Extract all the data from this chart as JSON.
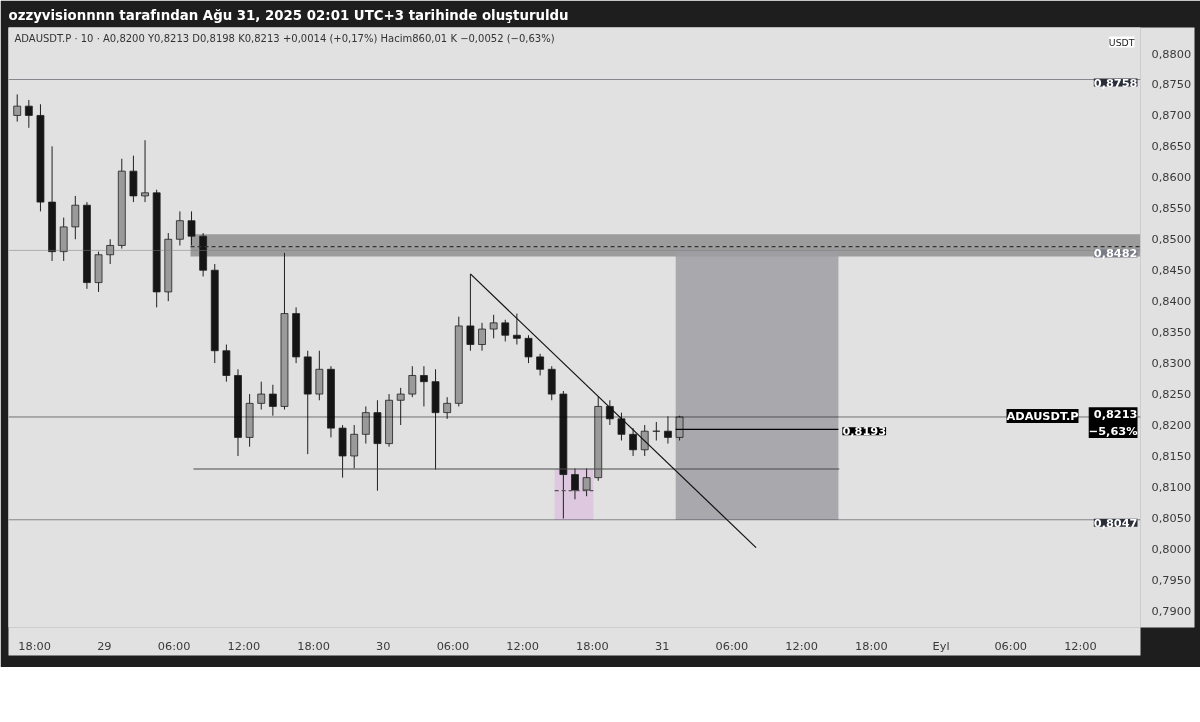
{
  "chart_data": {
    "type": "candlestick",
    "title": "ozzyvisionnnn tarafından Ağu 31, 2025 02:01 UTC+3 tarihinde oluşturuldu",
    "subtitle": "ADAUSDT.P · 10 · A0,8200 Y0,8213 D0,8198 K0,8213 +0,0014 (+0,17%) Hacim860,01 K −0,0052 (−0,63%)",
    "annotations": [
      "USDT",
      "ADAUSDT.P"
    ],
    "x": [
      "2025-08-28T16:30",
      "2025-08-28T17:30",
      "2025-08-28T18:30",
      "2025-08-28T19:30",
      "2025-08-28T20:30",
      "2025-08-28T21:30",
      "2025-08-28T22:30",
      "2025-08-28T23:30",
      "2025-08-29T00:30",
      "2025-08-29T01:30",
      "2025-08-29T02:30",
      "2025-08-29T03:30",
      "2025-08-29T04:30",
      "2025-08-29T05:30",
      "2025-08-29T06:30",
      "2025-08-29T07:30",
      "2025-08-29T08:30",
      "2025-08-29T09:30",
      "2025-08-29T10:30",
      "2025-08-29T11:30",
      "2025-08-29T12:30",
      "2025-08-29T13:30",
      "2025-08-29T14:30",
      "2025-08-29T15:30",
      "2025-08-29T16:30",
      "2025-08-29T17:30",
      "2025-08-29T18:30",
      "2025-08-29T19:30",
      "2025-08-29T20:30",
      "2025-08-29T21:30",
      "2025-08-29T22:30",
      "2025-08-29T23:30",
      "2025-08-30T00:30",
      "2025-08-30T01:30",
      "2025-08-30T02:30",
      "2025-08-30T03:30",
      "2025-08-30T04:30",
      "2025-08-30T05:30",
      "2025-08-30T06:30",
      "2025-08-30T07:30",
      "2025-08-30T08:30",
      "2025-08-30T09:30",
      "2025-08-30T10:30",
      "2025-08-30T11:30",
      "2025-08-30T12:30",
      "2025-08-30T13:30",
      "2025-08-30T14:30",
      "2025-08-30T15:30",
      "2025-08-30T16:30",
      "2025-08-30T17:30",
      "2025-08-30T18:30",
      "2025-08-30T19:30",
      "2025-08-30T20:30",
      "2025-08-30T21:30",
      "2025-08-30T22:30",
      "2025-08-30T23:30",
      "2025-08-31T00:30",
      "2025-08-31T01:30"
    ],
    "ohlc": [
      [
        0.87,
        0.8734,
        0.869,
        0.8715
      ],
      [
        0.8715,
        0.8725,
        0.868,
        0.87
      ],
      [
        0.87,
        0.8718,
        0.8545,
        0.856
      ],
      [
        0.856,
        0.865,
        0.8465,
        0.848
      ],
      [
        0.848,
        0.8535,
        0.8465,
        0.852
      ],
      [
        0.852,
        0.857,
        0.85,
        0.8555
      ],
      [
        0.8555,
        0.856,
        0.842,
        0.843
      ],
      [
        0.843,
        0.848,
        0.8415,
        0.8475
      ],
      [
        0.8475,
        0.85,
        0.846,
        0.849
      ],
      [
        0.849,
        0.863,
        0.8485,
        0.861
      ],
      [
        0.861,
        0.8635,
        0.856,
        0.857
      ],
      [
        0.857,
        0.866,
        0.856,
        0.8575
      ],
      [
        0.8575,
        0.858,
        0.839,
        0.8415
      ],
      [
        0.8415,
        0.851,
        0.84,
        0.85
      ],
      [
        0.85,
        0.8545,
        0.849,
        0.853
      ],
      [
        0.853,
        0.8545,
        0.849,
        0.8505
      ],
      [
        0.8505,
        0.851,
        0.844,
        0.845
      ],
      [
        0.845,
        0.846,
        0.83,
        0.832
      ],
      [
        0.832,
        0.833,
        0.827,
        0.828
      ],
      [
        0.828,
        0.829,
        0.815,
        0.818
      ],
      [
        0.818,
        0.825,
        0.8165,
        0.8235
      ],
      [
        0.8235,
        0.827,
        0.8225,
        0.825
      ],
      [
        0.825,
        0.8265,
        0.8215,
        0.823
      ],
      [
        0.823,
        0.8478,
        0.8225,
        0.838
      ],
      [
        0.838,
        0.839,
        0.83,
        0.831
      ],
      [
        0.831,
        0.832,
        0.8153,
        0.825
      ],
      [
        0.825,
        0.832,
        0.824,
        0.829
      ],
      [
        0.829,
        0.8295,
        0.818,
        0.8195
      ],
      [
        0.8195,
        0.82,
        0.8115,
        0.815
      ],
      [
        0.815,
        0.82,
        0.813,
        0.8185
      ],
      [
        0.8185,
        0.823,
        0.817,
        0.822
      ],
      [
        0.822,
        0.824,
        0.8094,
        0.817
      ],
      [
        0.817,
        0.825,
        0.8165,
        0.824
      ],
      [
        0.824,
        0.826,
        0.82,
        0.825
      ],
      [
        0.825,
        0.8295,
        0.8245,
        0.828
      ],
      [
        0.828,
        0.8295,
        0.823,
        0.827
      ],
      [
        0.827,
        0.829,
        0.8128,
        0.822
      ],
      [
        0.822,
        0.8245,
        0.821,
        0.8235
      ],
      [
        0.8235,
        0.8375,
        0.823,
        0.836
      ],
      [
        0.836,
        0.8444,
        0.832,
        0.833
      ],
      [
        0.833,
        0.8365,
        0.832,
        0.8355
      ],
      [
        0.8355,
        0.8378,
        0.834,
        0.8365
      ],
      [
        0.8365,
        0.837,
        0.8335,
        0.8345
      ],
      [
        0.8345,
        0.838,
        0.833,
        0.834
      ],
      [
        0.834,
        0.8345,
        0.83,
        0.831
      ],
      [
        0.831,
        0.8315,
        0.828,
        0.829
      ],
      [
        0.829,
        0.8295,
        0.824,
        0.825
      ],
      [
        0.825,
        0.8255,
        0.8049,
        0.812
      ],
      [
        0.812,
        0.813,
        0.808,
        0.8095
      ],
      [
        0.8095,
        0.813,
        0.8085,
        0.8115
      ],
      [
        0.8115,
        0.8246,
        0.811,
        0.823
      ],
      [
        0.823,
        0.824,
        0.82,
        0.821
      ],
      [
        0.821,
        0.822,
        0.8175,
        0.8185
      ],
      [
        0.8185,
        0.8195,
        0.815,
        0.816
      ],
      [
        0.816,
        0.82,
        0.815,
        0.819
      ],
      [
        0.819,
        0.8205,
        0.8175,
        0.819
      ],
      [
        0.819,
        0.8214,
        0.817,
        0.818
      ],
      [
        0.818,
        0.8215,
        0.8175,
        0.8213
      ]
    ],
    "series": [
      {
        "type": "line",
        "color": "#333333",
        "line_style": "dashed",
        "colors": [
          "#8f8f8f",
          "#8f8f8f"
        ],
        "x": [
          "2025-08-29T07:25",
          "2025-09-01T17:10"
        ],
        "values": [
          0.8488,
          0.8488
        ],
        "lower": [
          0.8472,
          0.8472
        ],
        "upper": [
          0.8508,
          0.8508
        ]
      },
      {
        "type": "line",
        "color": "#000000",
        "colors": [
          "#9d9ea3",
          "#9d9ea3"
        ],
        "x": [
          "2025-08-31T01:10",
          "2025-08-31T15:10"
        ],
        "values": [
          0.8193,
          0.8193
        ],
        "lower": [
          0.8047,
          0.8047
        ],
        "upper": [
          0.8482,
          0.8482
        ],
        "value_labels": [
          null,
          "0,8193"
        ]
      },
      {
        "type": "line",
        "color": "#555555",
        "line_style": "dashed",
        "colors": [
          "#dcc3de",
          "#dcc3de"
        ],
        "x": [
          "2025-08-30T14:45",
          "2025-08-30T18:05"
        ],
        "values": [
          0.8094,
          0.8094
        ],
        "lower": [
          0.8047,
          0.8047
        ],
        "upper": [
          0.8129,
          0.8129
        ]
      },
      {
        "type": "line",
        "color": "#4a4a4a",
        "x": [
          "2025-08-29T07:40",
          "2025-08-31T15:15"
        ],
        "values": [
          0.8129,
          0.8129
        ]
      },
      {
        "type": "line",
        "color": "#111111",
        "x": [
          "2025-08-30T07:30",
          "2025-08-31T08:05"
        ],
        "values": [
          0.8444,
          0.8002
        ]
      }
    ],
    "ref_lines": [
      {
        "axis": "y",
        "value": 0.8758,
        "label": "0,8758",
        "color": "#2a2e39"
      },
      {
        "axis": "y",
        "value": 0.8482,
        "label": "0,8482",
        "color": "#787b86"
      },
      {
        "axis": "y",
        "value": 0.8213,
        "label": "0,8213\n−5,63%",
        "color": "#000000"
      },
      {
        "axis": "y",
        "value": 0.8047,
        "label": "0,8047",
        "color": "#2a2e39"
      }
    ],
    "xlim": [
      "2025-08-28T15:45",
      "2025-09-01T17:10"
    ],
    "xticks": [
      {
        "value": "2025-08-28T18:00",
        "label": "18:00"
      },
      {
        "value": "2025-08-29T00:00",
        "label": "29"
      },
      {
        "value": "2025-08-29T06:00",
        "label": "06:00"
      },
      {
        "value": "2025-08-29T12:00",
        "label": "12:00"
      },
      {
        "value": "2025-08-29T18:00",
        "label": "18:00"
      },
      {
        "value": "2025-08-30T00:00",
        "label": "30"
      },
      {
        "value": "2025-08-30T06:00",
        "label": "06:00"
      },
      {
        "value": "2025-08-30T12:00",
        "label": "12:00"
      },
      {
        "value": "2025-08-30T18:00",
        "label": "18:00"
      },
      {
        "value": "2025-08-31T00:00",
        "label": "31"
      },
      {
        "value": "2025-08-31T06:00",
        "label": "06:00"
      },
      {
        "value": "2025-08-31T12:00",
        "label": "12:00"
      },
      {
        "value": "2025-08-31T18:00",
        "label": "18:00"
      },
      {
        "value": "2025-09-01T00:00",
        "label": "Eyl"
      },
      {
        "value": "2025-09-01T06:00",
        "label": "06:00"
      },
      {
        "value": "2025-09-01T12:00",
        "label": "12:00"
      }
    ],
    "ylim": [
      0.7873,
      0.8842
    ],
    "yticks": [
      {
        "value": 0.79,
        "label": "0,7900"
      },
      {
        "value": 0.795,
        "label": "0,7950"
      },
      {
        "value": 0.8,
        "label": "0,8000"
      },
      {
        "value": 0.805,
        "label": "0,8050"
      },
      {
        "value": 0.81,
        "label": "0,8100"
      },
      {
        "value": 0.815,
        "label": "0,8150"
      },
      {
        "value": 0.82,
        "label": "0,8200"
      },
      {
        "value": 0.825,
        "label": "0,8250"
      },
      {
        "value": 0.83,
        "label": "0,8300"
      },
      {
        "value": 0.835,
        "label": "0,8350"
      },
      {
        "value": 0.84,
        "label": "0,8400"
      },
      {
        "value": 0.845,
        "label": "0,8450"
      },
      {
        "value": 0.85,
        "label": "0,8500"
      },
      {
        "value": 0.855,
        "label": "0,8550"
      },
      {
        "value": 0.86,
        "label": "0,8600"
      },
      {
        "value": 0.865,
        "label": "0,8650"
      },
      {
        "value": 0.87,
        "label": "0,8700"
      },
      {
        "value": 0.875,
        "label": "0,8750"
      },
      {
        "value": 0.88,
        "label": "0,8800"
      }
    ],
    "grid": false
  }
}
